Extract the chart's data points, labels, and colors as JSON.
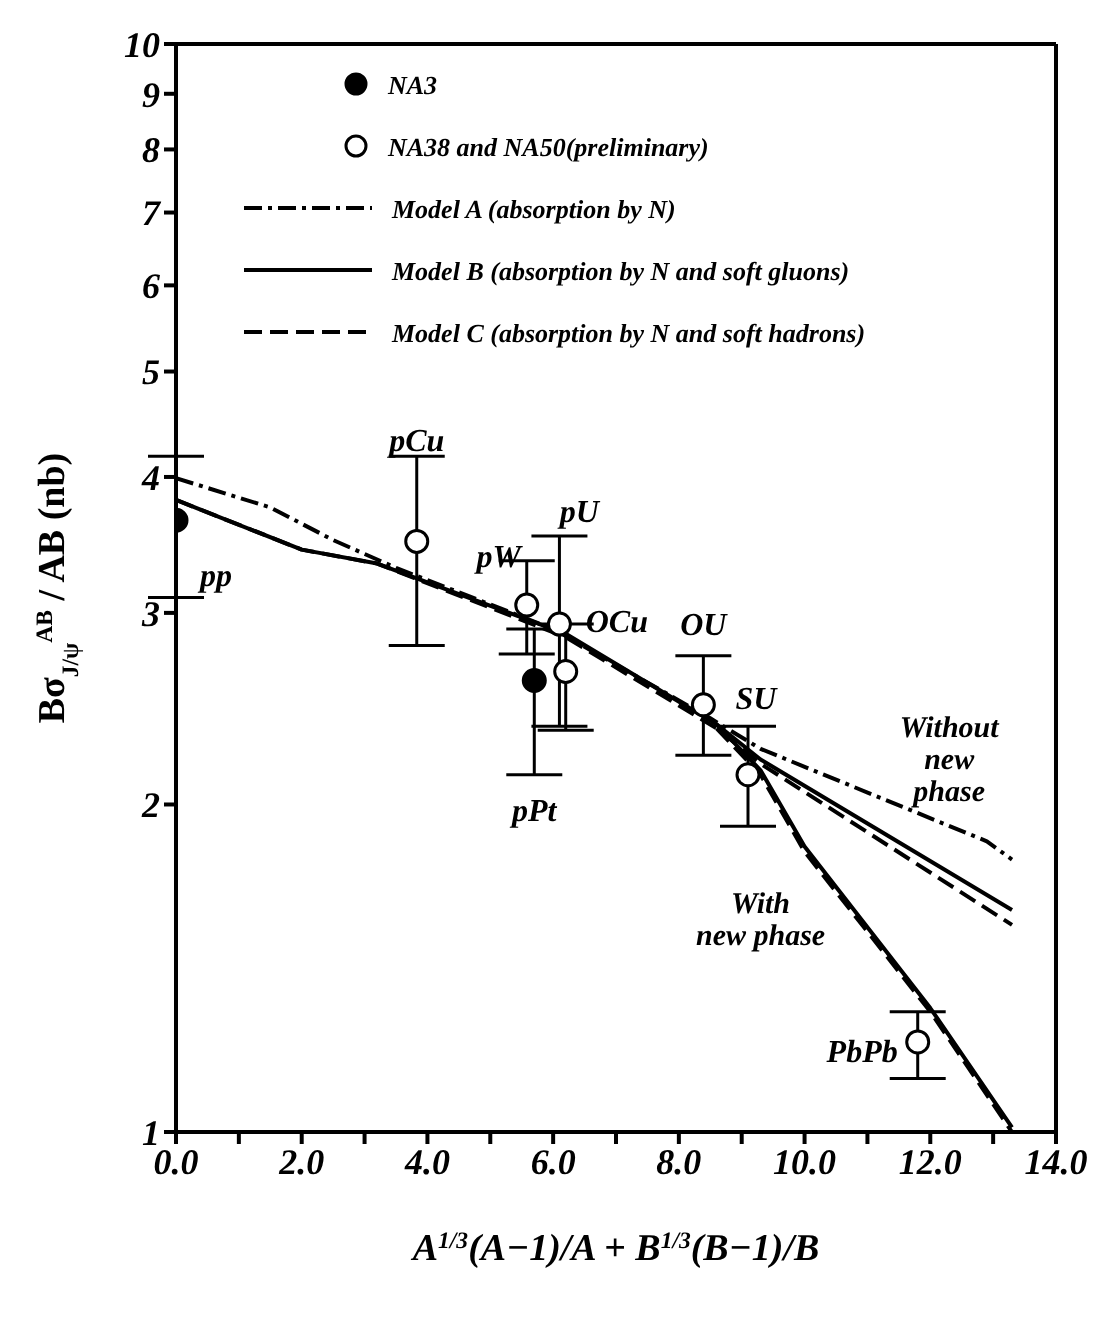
{
  "chart_data": {
    "type": "line",
    "xlabel": "A$^{1/3}$(A−1)/A + B$^{1/3}$(B−1)/B",
    "ylabel": "Bσ$_{J/ψ}$$^{AB}$ / AB (nb)",
    "log": "y",
    "xlim": [
      0,
      14
    ],
    "ylim": [
      1,
      10
    ],
    "xticks": [
      {
        "value": 0,
        "label": "0.0"
      },
      {
        "value": 1,
        "label": null
      },
      {
        "value": 2,
        "label": "2.0"
      },
      {
        "value": 3,
        "label": null
      },
      {
        "value": 4,
        "label": "4.0"
      },
      {
        "value": 5,
        "label": null
      },
      {
        "value": 6,
        "label": "6.0"
      },
      {
        "value": 7,
        "label": null
      },
      {
        "value": 8,
        "label": "8.0"
      },
      {
        "value": 9,
        "label": null
      },
      {
        "value": 10,
        "label": "10.0"
      },
      {
        "value": 11,
        "label": null
      },
      {
        "value": 12,
        "label": "12.0"
      },
      {
        "value": 13,
        "label": null
      },
      {
        "value": 14,
        "label": "14.0"
      }
    ],
    "yticks": [
      1,
      2,
      3,
      4,
      5,
      6,
      7,
      8,
      9,
      10
    ],
    "grid": false,
    "legend": "top",
    "series": [
      {
        "name": "NA3",
        "type": "scatter",
        "marker": "circle",
        "color": "#000000",
        "x": [
          0,
          5.7
        ],
        "values": [
          3.65,
          2.6
        ],
        "errors": [
          [
            3.1,
            4.18
          ],
          [
            2.13,
            2.9
          ]
        ]
      },
      {
        "name": "NA38 and NA50(preliminary)",
        "type": "scatter",
        "marker": "circle",
        "color": "#ffffff",
        "x": [
          3.83,
          5.58,
          6.1,
          6.2,
          8.39,
          9.1,
          11.8
        ],
        "values": [
          3.49,
          3.05,
          2.93,
          2.65,
          2.47,
          2.13,
          1.21
        ],
        "errors": [
          [
            2.8,
            4.18
          ],
          [
            2.75,
            3.35
          ],
          [
            2.36,
            3.53
          ],
          [
            2.34,
            2.93
          ],
          [
            2.22,
            2.74
          ],
          [
            1.91,
            2.36
          ],
          [
            1.12,
            1.29
          ]
        ]
      },
      {
        "name": "Model A (absorption by N)",
        "type": "line",
        "line_style": "dashdot",
        "color": "#000000",
        "x": [
          0,
          1.5,
          2.5,
          3.5,
          6,
          8.5,
          9.3,
          12.9,
          13.3
        ],
        "values": [
          3.99,
          3.75,
          3.5,
          3.3,
          2.9,
          2.4,
          2.25,
          1.85,
          1.78
        ]
      },
      {
        "name": "Model B (absorption by N and soft gluons)",
        "type": "line",
        "line_style": "solid",
        "color": "#000000",
        "x": [
          0,
          2,
          3.2,
          6.2,
          8.6,
          9.3,
          13.3
        ],
        "values": [
          3.81,
          3.43,
          3.33,
          2.87,
          2.37,
          2.2,
          1.6
        ]
      },
      {
        "name": "Model C (absorption by N and soft hadrons)",
        "type": "line",
        "line_style": "dashed",
        "color": "#000000",
        "x": [
          0,
          2,
          3.2,
          6.2,
          8.6,
          9.3,
          13.3
        ],
        "values": [
          3.81,
          3.43,
          3.33,
          2.85,
          2.35,
          2.18,
          1.55
        ]
      },
      {
        "type": "line",
        "line_style": "solid",
        "color": "#000000",
        "x": [
          8.6,
          9.3,
          10,
          12,
          13.3
        ],
        "values": [
          2.37,
          2.15,
          1.83,
          1.3,
          1.01
        ]
      },
      {
        "type": "line",
        "line_style": "dashed",
        "color": "#000000",
        "x": [
          8.6,
          9.3,
          10,
          12,
          13.3
        ],
        "values": [
          2.35,
          2.13,
          1.81,
          1.29,
          1.0
        ]
      }
    ],
    "annotations": [
      {
        "text": "pp",
        "x": 0,
        "y": 3.65
      },
      {
        "text": "pCu",
        "x": 3.83,
        "y": 3.49
      },
      {
        "text": "pW",
        "x": 5.58,
        "y": 3.05
      },
      {
        "text": "pU",
        "x": 6.1,
        "y": 2.93
      },
      {
        "text": "OCu",
        "x": 6.2,
        "y": 2.65
      },
      {
        "text": "pPt",
        "x": 5.7,
        "y": 2.13
      },
      {
        "text": "OU",
        "x": 8.39,
        "y": 2.47
      },
      {
        "text": "SU",
        "x": 9.1,
        "y": 2.13
      },
      {
        "text": "PbPb",
        "x": 11.8,
        "y": 1.21
      },
      "Without\nnew\nphase",
      "With\nnew phase"
    ]
  }
}
